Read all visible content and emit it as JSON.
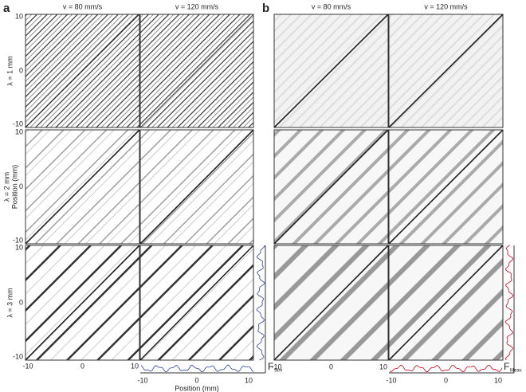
{
  "panels": [
    {
      "label": "a",
      "columns": [
        "v = 80 mm/s",
        "v = 120 mm/s"
      ]
    },
    {
      "label": "b",
      "columns": [
        "v = 80 mm/s",
        "v = 120 mm/s"
      ]
    }
  ],
  "rows": [
    "λ = 1 mm",
    "λ = 2 mm",
    "λ = 3 mm"
  ],
  "y_axis": {
    "label": "Position (mm)",
    "ticks": [
      "10",
      "0",
      "-10"
    ]
  },
  "x_axis": {
    "label": "Position (mm)",
    "ticks": [
      "-10",
      "0",
      "10"
    ]
  },
  "profiles": [
    {
      "symbol": "F",
      "subscript": "Sim"
    },
    {
      "symbol": "F",
      "subscript": "Meas"
    }
  ]
}
